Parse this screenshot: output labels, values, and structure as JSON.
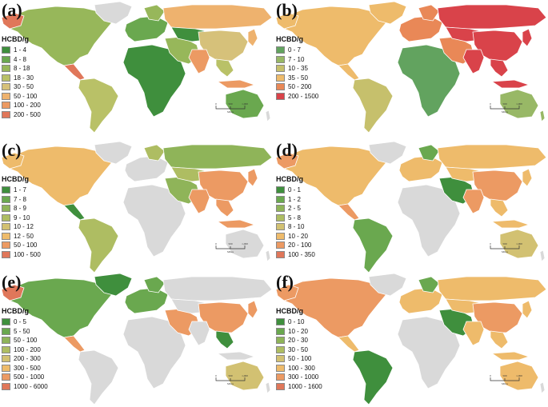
{
  "unit": "HCBD/g",
  "scale": {
    "labels": [
      "0",
      "500",
      "1,000"
    ],
    "unit": "Miles"
  },
  "colors": {
    "land_base": "#d9d9d9",
    "border": "#ffffff"
  },
  "panels": [
    {
      "id": "a",
      "label": "(a)",
      "legend": [
        {
          "range": "1 - 4",
          "color": "#3f8f3d"
        },
        {
          "range": "4 - 8",
          "color": "#6aa84f"
        },
        {
          "range": "8 - 18",
          "color": "#97b75a"
        },
        {
          "range": "18 - 30",
          "color": "#b9c167"
        },
        {
          "range": "30 - 50",
          "color": "#d6c17a"
        },
        {
          "range": "50 - 100",
          "color": "#eeb26e"
        },
        {
          "range": "100 - 200",
          "color": "#ec9a63"
        },
        {
          "range": "200 - 500",
          "color": "#e0775a"
        }
      ]
    },
    {
      "id": "b",
      "label": "(b)",
      "legend": [
        {
          "range": "0 - 7",
          "color": "#62a35f"
        },
        {
          "range": "7 - 10",
          "color": "#98b866"
        },
        {
          "range": "10 - 35",
          "color": "#c6c06c"
        },
        {
          "range": "35 - 50",
          "color": "#eebb6b"
        },
        {
          "range": "50 - 200",
          "color": "#e98857"
        },
        {
          "range": "200 - 1500",
          "color": "#d9434a"
        }
      ]
    },
    {
      "id": "c",
      "label": "(c)",
      "legend": [
        {
          "range": "1 - 7",
          "color": "#3f8f3d"
        },
        {
          "range": "7 - 8",
          "color": "#6aa84f"
        },
        {
          "range": "8 - 9",
          "color": "#8fb459"
        },
        {
          "range": "9 - 10",
          "color": "#aebd62"
        },
        {
          "range": "10 - 12",
          "color": "#d2c172"
        },
        {
          "range": "12 - 50",
          "color": "#eebb6b"
        },
        {
          "range": "50 - 100",
          "color": "#ec9a63"
        },
        {
          "range": "100 - 500",
          "color": "#e0775a"
        }
      ]
    },
    {
      "id": "d",
      "label": "(d)",
      "legend": [
        {
          "range": "0 - 1",
          "color": "#3f8f3d"
        },
        {
          "range": "1 - 2",
          "color": "#6aa84f"
        },
        {
          "range": "2 - 5",
          "color": "#8fb459"
        },
        {
          "range": "5 - 8",
          "color": "#aebd62"
        },
        {
          "range": "8 - 10",
          "color": "#d2c172"
        },
        {
          "range": "10 - 20",
          "color": "#eebb6b"
        },
        {
          "range": "20 - 100",
          "color": "#ec9a63"
        },
        {
          "range": "100 - 350",
          "color": "#e0775a"
        }
      ]
    },
    {
      "id": "e",
      "label": "(e)",
      "legend": [
        {
          "range": "0 - 5",
          "color": "#3f8f3d"
        },
        {
          "range": "5 - 50",
          "color": "#6aa84f"
        },
        {
          "range": "50 - 100",
          "color": "#8fb459"
        },
        {
          "range": "100 - 200",
          "color": "#aebd62"
        },
        {
          "range": "200 - 300",
          "color": "#d2c172"
        },
        {
          "range": "300 - 500",
          "color": "#eebb6b"
        },
        {
          "range": "500 - 1000",
          "color": "#ec9a63"
        },
        {
          "range": "1000 - 6000",
          "color": "#e0775a"
        }
      ]
    },
    {
      "id": "f",
      "label": "(f)",
      "legend": [
        {
          "range": "0 - 10",
          "color": "#3f8f3d"
        },
        {
          "range": "10 - 20",
          "color": "#6aa84f"
        },
        {
          "range": "20 - 30",
          "color": "#8fb459"
        },
        {
          "range": "30 - 50",
          "color": "#aebd62"
        },
        {
          "range": "50 - 100",
          "color": "#d2c172"
        },
        {
          "range": "100 - 300",
          "color": "#eebb6b"
        },
        {
          "range": "300 - 1000",
          "color": "#ec9a63"
        },
        {
          "range": "1000 - 1600",
          "color": "#e0775a"
        }
      ]
    }
  ]
}
